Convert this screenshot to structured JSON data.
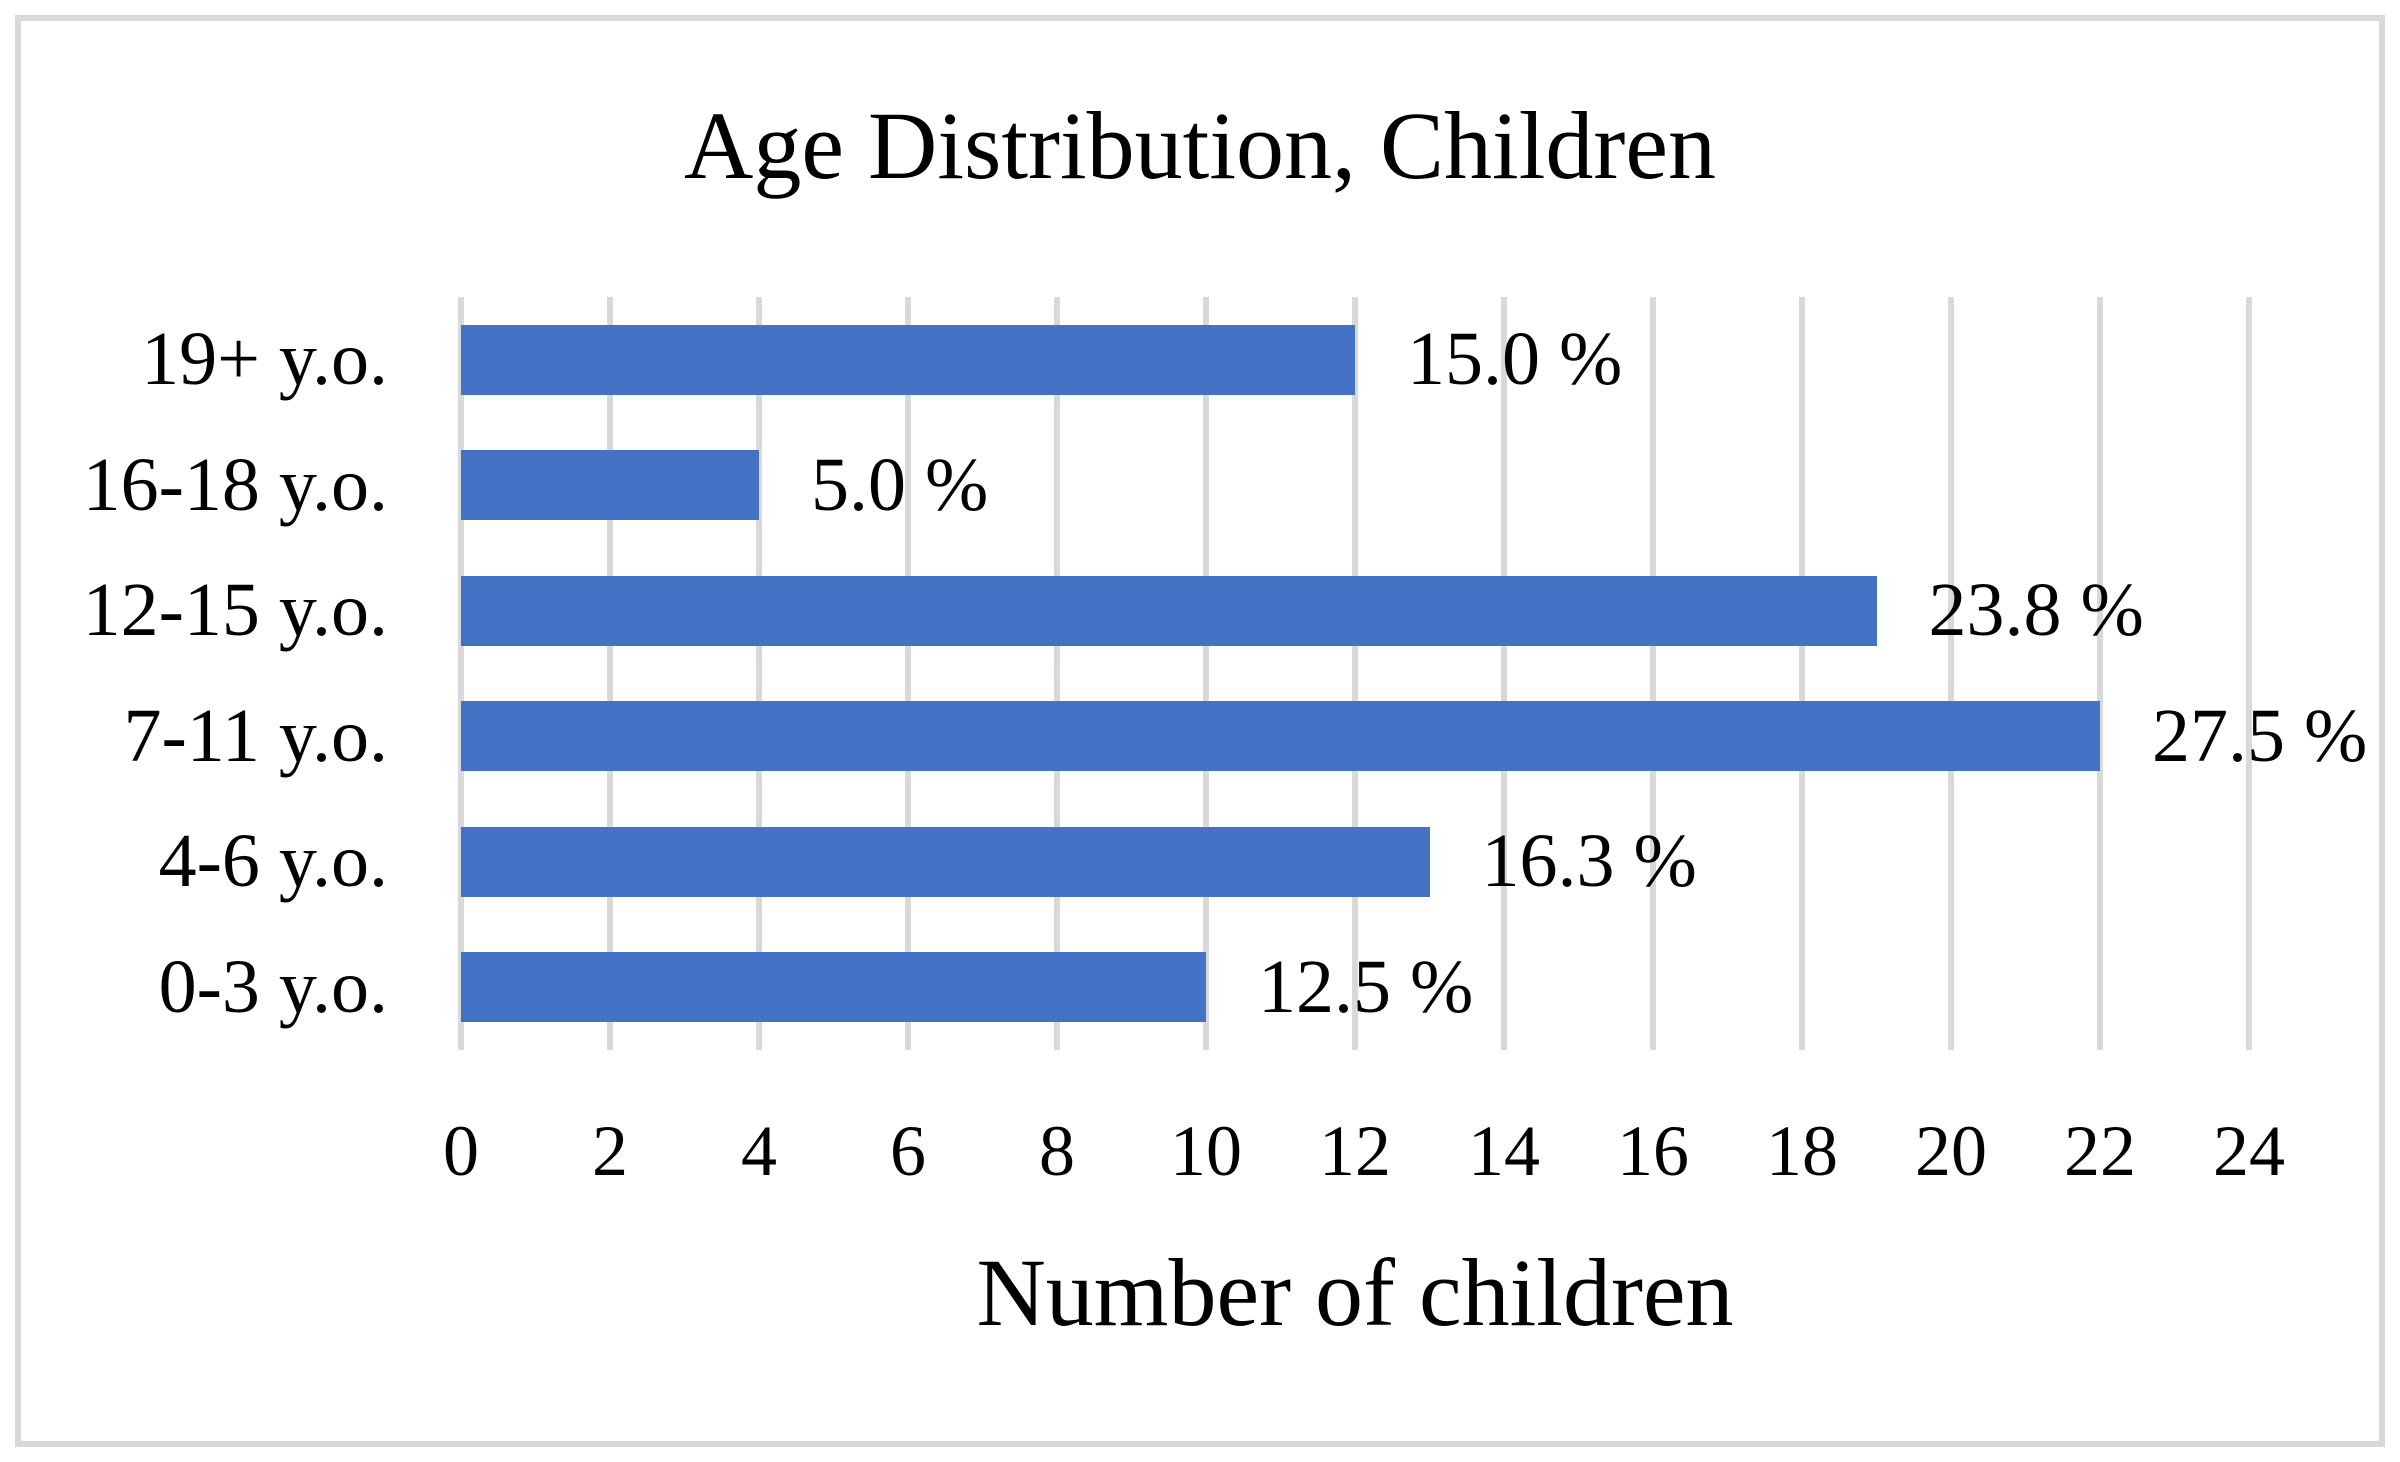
{
  "colors": {
    "bar": "#4472C4",
    "gridline": "#D9D9D9",
    "frame_border": "#D9D9D9",
    "background": "#FFFFFF",
    "text": "#000000"
  },
  "chart_data": {
    "type": "bar",
    "orientation": "horizontal",
    "title": "Age Distribution, Children",
    "xlabel": "Number of children",
    "ylabel": "",
    "categories": [
      "19+ y.o.",
      "16-18 y.o.",
      "12-15 y.o.",
      "7-11 y.o.",
      "4-6 y.o.",
      "0-3 y.o."
    ],
    "values": [
      12,
      4,
      19,
      22,
      13,
      10
    ],
    "data_labels": [
      "15.0 %",
      "5.0 %",
      "23.8 %",
      "27.5 %",
      "16.3 %",
      "12.5 %"
    ],
    "xlim": [
      0,
      24
    ],
    "xticks": [
      0,
      2,
      4,
      6,
      8,
      10,
      12,
      14,
      16,
      18,
      20,
      22,
      24
    ],
    "grid": "vertical-only",
    "legend": "none"
  }
}
